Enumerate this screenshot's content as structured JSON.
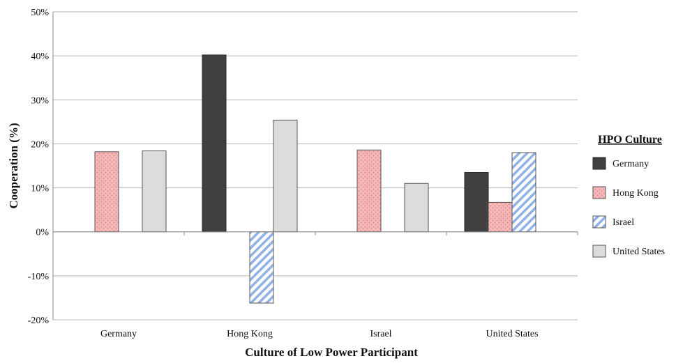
{
  "chart_data": {
    "type": "bar",
    "title": "",
    "xlabel": "Culture of Low Power Participant",
    "ylabel": "Cooperation (%)",
    "ylim": [
      -20,
      50
    ],
    "ytick_step": 10,
    "ytick_suffix": "%",
    "grid": true,
    "legend_title": "HPO Culture",
    "legend_position": "right",
    "categories": [
      "Germany",
      "Hong Kong",
      "Israel",
      "United States"
    ],
    "series": [
      {
        "name": "Germany",
        "values": [
          null,
          40.2,
          null,
          13.5
        ],
        "pattern": "solid",
        "color": "#404040"
      },
      {
        "name": "Hong Kong",
        "values": [
          18.2,
          null,
          18.6,
          6.7
        ],
        "pattern": "dots",
        "color": "#f2aaaa"
      },
      {
        "name": "Israel",
        "values": [
          null,
          -16.2,
          null,
          18.0
        ],
        "pattern": "stripes",
        "color": "#8fb1e6"
      },
      {
        "name": "United States",
        "values": [
          18.4,
          25.4,
          11.0,
          null
        ],
        "pattern": "solid",
        "color": "#dcdcdc"
      }
    ]
  }
}
